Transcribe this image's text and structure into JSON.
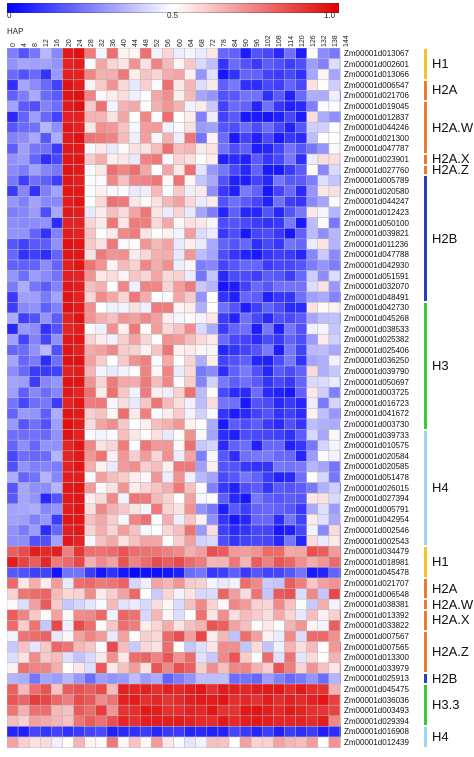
{
  "chart_data": {
    "type": "heatmap",
    "colorbar": {
      "ticks": [
        "0",
        "0.5",
        "1.0"
      ],
      "tick_values": [
        0,
        0.5,
        1.0
      ],
      "colors": [
        "#0000ff",
        "#ffffff",
        "#e00000"
      ]
    },
    "x_title": "HAP",
    "columns": [
      "0",
      "4",
      "8",
      "12",
      "16",
      "20",
      "24",
      "28",
      "32",
      "36",
      "40",
      "44",
      "48",
      "52",
      "56",
      "60",
      "64",
      "68",
      "72",
      "78",
      "84",
      "90",
      "96",
      "102",
      "108",
      "114",
      "120",
      "126",
      "132",
      "138",
      "144"
    ],
    "rows": [
      "Zm00001d013067",
      "Zm00001d002601",
      "Zm00001d013066",
      "Zm00001d006547",
      "Zm00001d021706",
      "Zm00001d019045",
      "Zm00001d012837",
      "Zm00001d044246",
      "Zm00001d021300",
      "Zm00001d047787",
      "Zm00001d023901",
      "Zm00001d027760",
      "Zm00001d005789",
      "Zm00001d020580",
      "Zm00001d044247",
      "Zm00001d012423",
      "Zm00001d050100",
      "Zm00001d039821",
      "Zm00001d011236",
      "Zm00001d047788",
      "Zm00001d042930",
      "Zm00001d051591",
      "Zm00001d032070",
      "Zm00001d048491",
      "Zm00001d042730",
      "Zm00001d045268",
      "Zm00001d038533",
      "Zm00001d025382",
      "Zm00001d025406",
      "Zm00001d036250",
      "Zm00001d039790",
      "Zm00001d050697",
      "Zm00001d003725",
      "Zm00001d016723",
      "Zm00001d041672",
      "Zm00001d003730",
      "Zm00001d039733",
      "Zm00001d010575",
      "Zm00001d020584",
      "Zm00001d020585",
      "Zm00001d051478",
      "Zm00001d026015",
      "Zm00001d027394",
      "Zm00001d005791",
      "Zm00001d042954",
      "Zm00001d002546",
      "Zm00001d002543",
      "Zm00001d034479",
      "Zm00001d018981",
      "Zm00001d045478",
      "Zm00001d021707",
      "Zm00001d006548",
      "Zm00001d038381",
      "Zm00001d013392",
      "Zm00001d033822",
      "Zm00001d007567",
      "Zm00001d007565",
      "Zm00001d013300",
      "Zm00001d033979",
      "Zm00001d025913",
      "Zm00001d045475",
      "Zm00001d036036",
      "Zm00001d003493",
      "Zm00001d029394",
      "Zm00001d016908",
      "Zm00001d012439"
    ],
    "groups": [
      {
        "label": "H1",
        "start": 0,
        "end": 2,
        "color": "#f5c32b"
      },
      {
        "label": "H2A",
        "start": 3,
        "end": 4,
        "color": "#ee7a2c"
      },
      {
        "label": "H2A.W",
        "start": 5,
        "end": 9,
        "color": "#ee7a2c"
      },
      {
        "label": "H2A.X",
        "start": 10,
        "end": 10,
        "color": "#ee7a2c"
      },
      {
        "label": "H2A.Z",
        "start": 11,
        "end": 11,
        "color": "#ee7a2c"
      },
      {
        "label": "H2B",
        "start": 12,
        "end": 23,
        "color": "#2a3fbf"
      },
      {
        "label": "H3",
        "start": 24,
        "end": 35,
        "color": "#3fc93a"
      },
      {
        "label": "H4",
        "start": 36,
        "end": 46,
        "color": "#9ad8ee"
      },
      {
        "label": "H1",
        "start": 47,
        "end": 49,
        "color": "#f5c32b"
      },
      {
        "label": "H2A",
        "start": 50,
        "end": 51,
        "color": "#ee7a2c"
      },
      {
        "label": "H2A.W",
        "start": 52,
        "end": 52,
        "color": "#ee7a2c"
      },
      {
        "label": "H2A.X",
        "start": 53,
        "end": 54,
        "color": "#ee7a2c"
      },
      {
        "label": "H2A.Z",
        "start": 55,
        "end": 58,
        "color": "#ee7a2c"
      },
      {
        "label": "H2B",
        "start": 59,
        "end": 59,
        "color": "#2a3fbf"
      },
      {
        "label": "H3.3",
        "start": 60,
        "end": 63,
        "color": "#3fc93a"
      },
      {
        "label": "H4",
        "start": 64,
        "end": 65,
        "color": "#9ad8ee"
      }
    ]
  }
}
